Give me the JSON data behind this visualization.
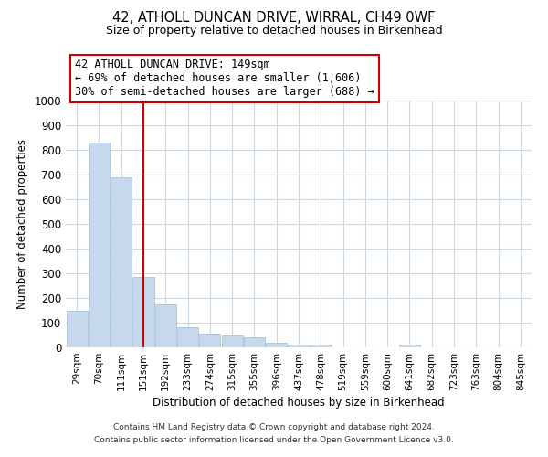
{
  "title": "42, ATHOLL DUNCAN DRIVE, WIRRAL, CH49 0WF",
  "subtitle": "Size of property relative to detached houses in Birkenhead",
  "xlabel": "Distribution of detached houses by size in Birkenhead",
  "ylabel": "Number of detached properties",
  "bar_color": "#c6d9ec",
  "bar_edge_color": "#a8c4dc",
  "categories": [
    "29sqm",
    "70sqm",
    "111sqm",
    "151sqm",
    "192sqm",
    "233sqm",
    "274sqm",
    "315sqm",
    "355sqm",
    "396sqm",
    "437sqm",
    "478sqm",
    "519sqm",
    "559sqm",
    "600sqm",
    "641sqm",
    "682sqm",
    "723sqm",
    "763sqm",
    "804sqm",
    "845sqm"
  ],
  "values": [
    150,
    828,
    690,
    285,
    175,
    80,
    57,
    50,
    40,
    18,
    10,
    10,
    0,
    0,
    0,
    10,
    0,
    0,
    0,
    0,
    0
  ],
  "vline_x": 3,
  "vline_color": "#cc0000",
  "annotation_title": "42 ATHOLL DUNCAN DRIVE: 149sqm",
  "annotation_line1": "← 69% of detached houses are smaller (1,606)",
  "annotation_line2": "30% of semi-detached houses are larger (688) →",
  "annotation_box_color": "#ffffff",
  "annotation_box_edge": "#cc0000",
  "ylim": [
    0,
    1000
  ],
  "yticks": [
    0,
    100,
    200,
    300,
    400,
    500,
    600,
    700,
    800,
    900,
    1000
  ],
  "footer1": "Contains HM Land Registry data © Crown copyright and database right 2024.",
  "footer2": "Contains public sector information licensed under the Open Government Licence v3.0.",
  "background_color": "#ffffff",
  "grid_color": "#cdd8e3"
}
